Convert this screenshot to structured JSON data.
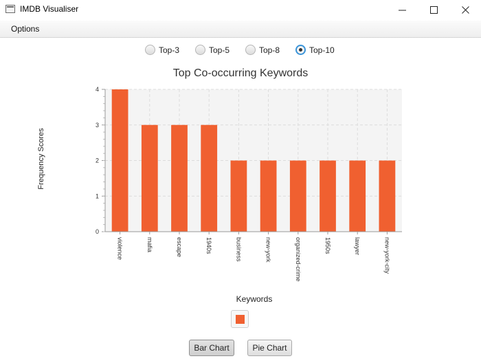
{
  "window": {
    "title": "IMDB Visualiser",
    "icon": "app-window-icon",
    "controls": [
      "minimize-icon",
      "maximize-icon",
      "close-icon"
    ]
  },
  "menu": {
    "options_label": "Options"
  },
  "radios": [
    {
      "label": "Top-3",
      "selected": false
    },
    {
      "label": "Top-5",
      "selected": false
    },
    {
      "label": "Top-8",
      "selected": false
    },
    {
      "label": "Top-10",
      "selected": true
    }
  ],
  "buttons": {
    "bar_chart": "Bar Chart",
    "pie_chart": "Pie Chart"
  },
  "chart_data": {
    "type": "bar",
    "title": "Top Co-occurring Keywords",
    "xlabel": "Keywords",
    "ylabel": "Frequency Scores",
    "categories": [
      "violence",
      "mafia",
      "escape",
      "1940s",
      "business",
      "new-york",
      "organized-crime",
      "1950s",
      "lawyer",
      "new-york-city"
    ],
    "values": [
      4,
      3,
      3,
      3,
      2,
      2,
      2,
      2,
      2,
      2
    ],
    "ylim": [
      0,
      4
    ],
    "yticks": [
      "0",
      "1",
      "2",
      "3",
      "4"
    ],
    "grid": true,
    "legend": "bottom-center",
    "bar_color": "#f06030"
  }
}
